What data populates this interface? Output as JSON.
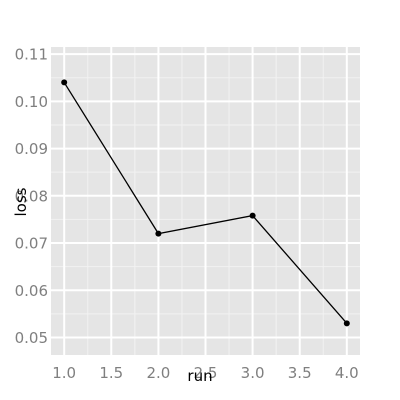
{
  "chart_data": {
    "type": "line",
    "title": "",
    "xlabel": "run",
    "ylabel": "loss",
    "xlim": [
      0.86,
      4.14
    ],
    "ylim": [
      0.0463,
      0.1115
    ],
    "x_ticks": [
      "1.0",
      "1.5",
      "2.0",
      "2.5",
      "3.0",
      "3.5",
      "4.0"
    ],
    "y_ticks": [
      "0.05",
      "0.06",
      "0.07",
      "0.08",
      "0.09",
      "0.10",
      "0.11"
    ],
    "x": [
      1,
      2,
      3,
      4
    ],
    "series": [
      {
        "values": [
          0.104,
          0.072,
          0.0758,
          0.053
        ]
      }
    ],
    "grid": true,
    "colors": {
      "panel_background": "#e5e5e5",
      "grid_major": "#ffffff",
      "grid_minor": "#f2f2f2",
      "line": "#000000",
      "tick_label": "#7f7f7f"
    }
  }
}
